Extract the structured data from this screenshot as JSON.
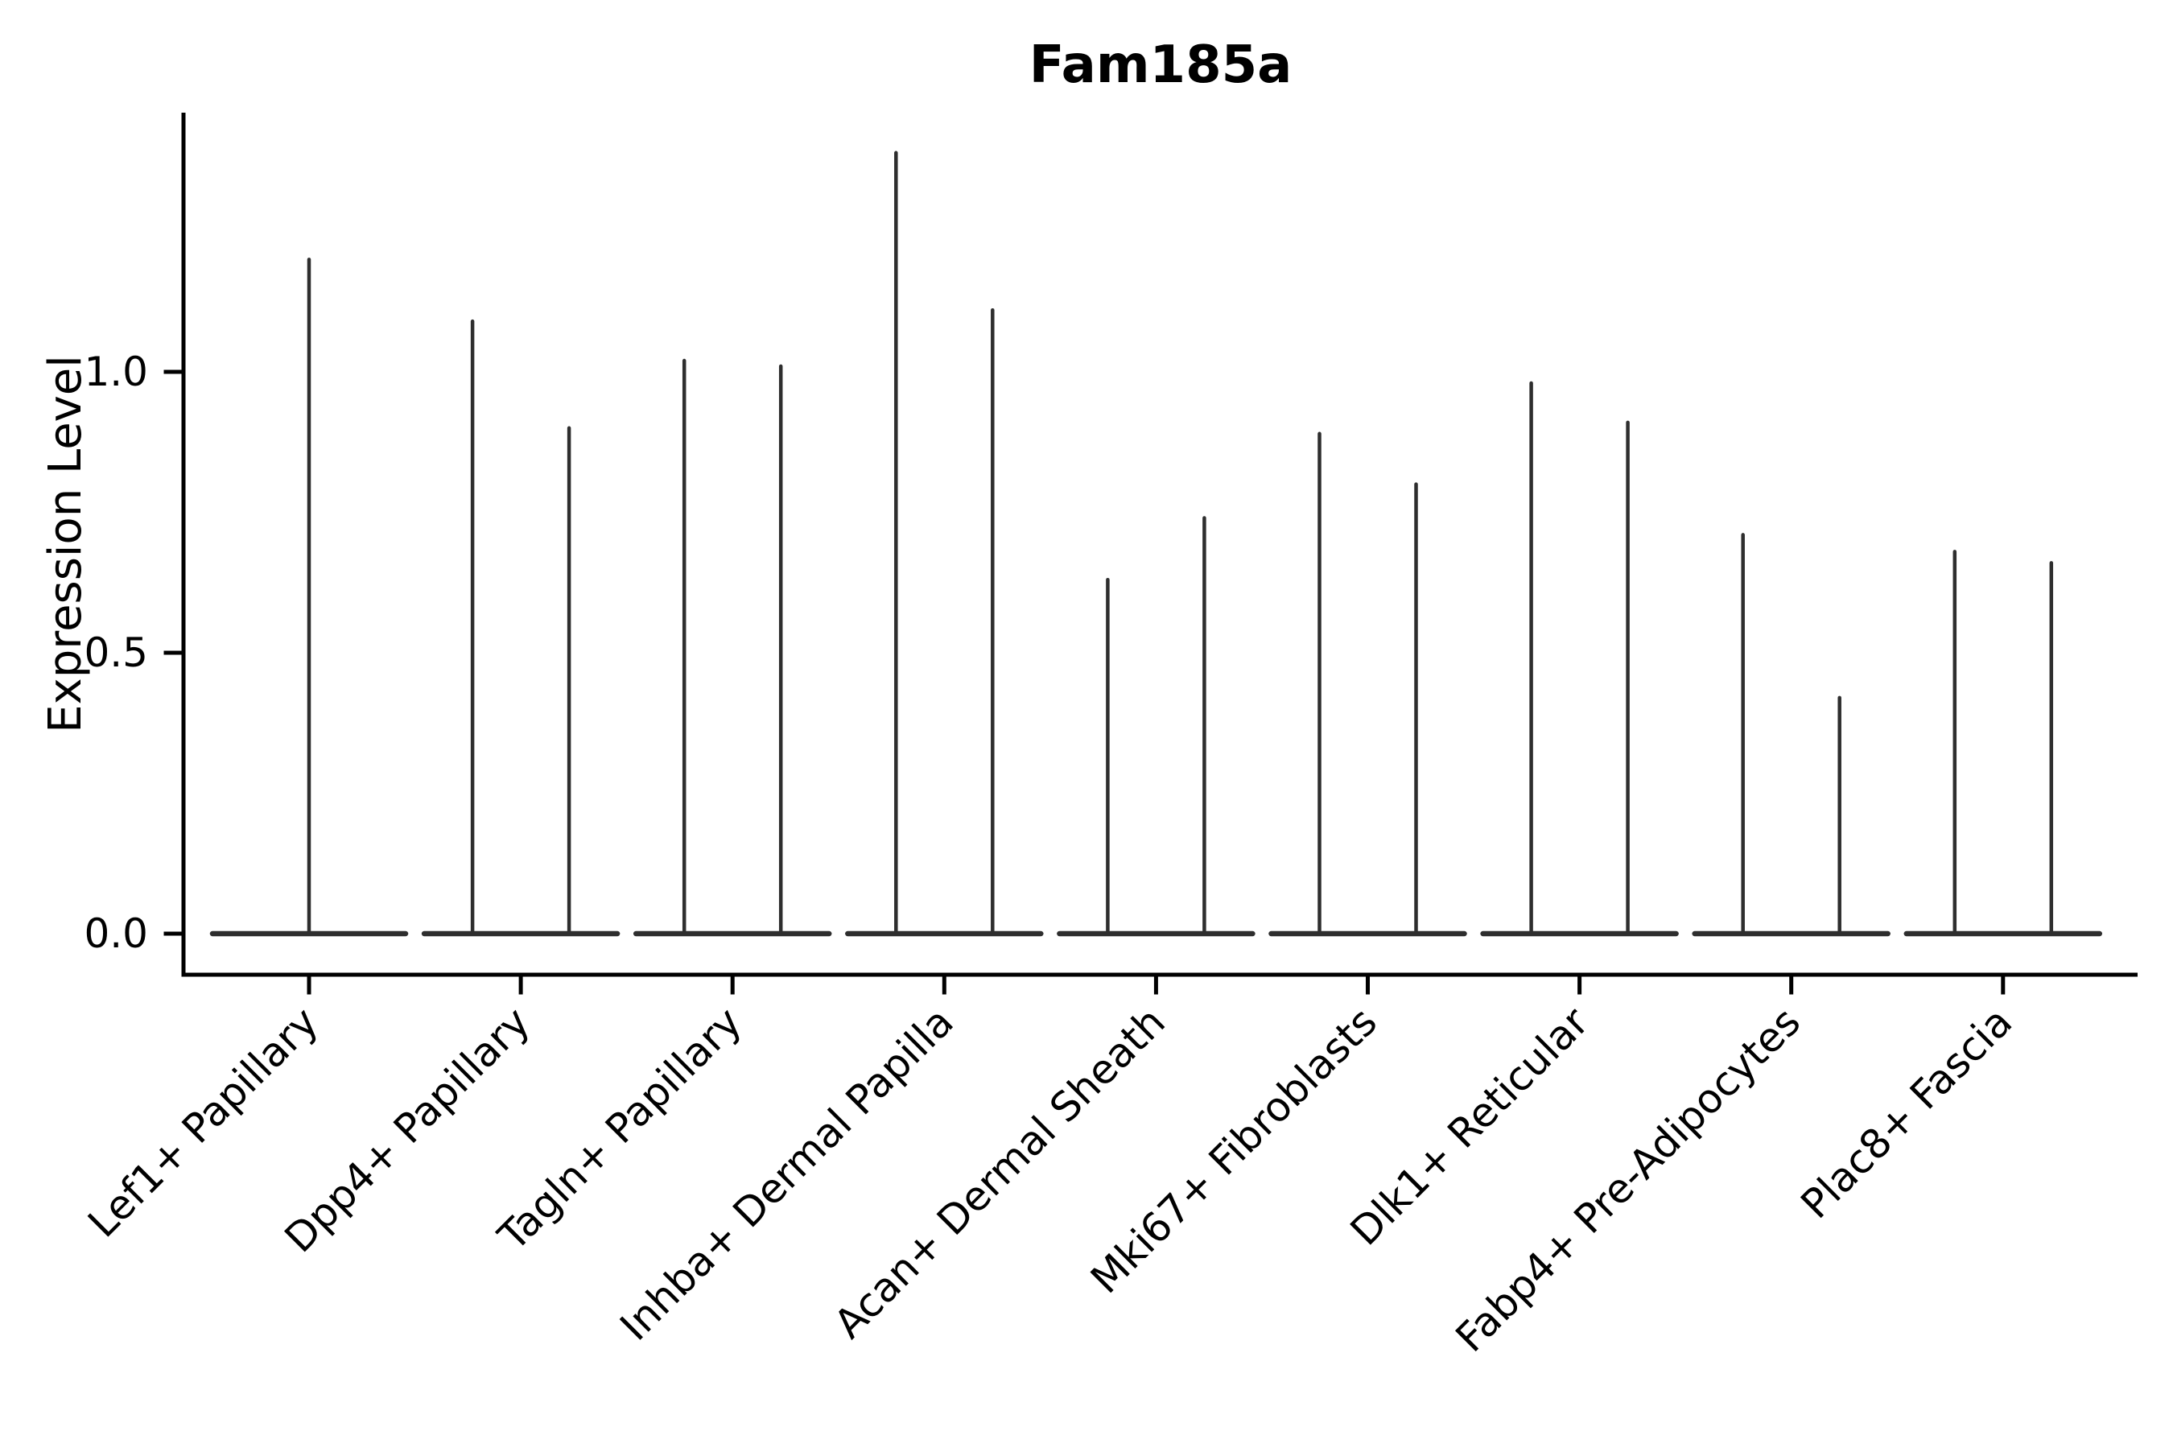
{
  "title": "Fam185a",
  "axes": {
    "y_label": "Expression Level",
    "y_tick_labels": [
      "0.0",
      "0.5",
      "1.0"
    ],
    "y_tick_values": [
      0.0,
      0.5,
      1.0
    ]
  },
  "chart_data": {
    "type": "violin",
    "title": "Fam185a",
    "xlabel": "",
    "ylabel": "Expression Level",
    "ylim": [
      -0.07,
      1.46
    ],
    "yticks": [
      0.0,
      0.5,
      1.0
    ],
    "grid": false,
    "legend": "none",
    "categories": [
      "Lef1+ Papillary",
      "Dpp4+ Papillary",
      "Tagln+ Papillary",
      "Inhba+ Dermal Papilla",
      "Acan+ Dermal Sheath",
      "Mki67+ Fibroblasts",
      "Dlk1+ Reticular",
      "Fabp4+ Pre-Adipocytes",
      "Plac8+ Fascia"
    ],
    "groups": [
      {
        "category": "Lef1+ Papillary",
        "violin_max_values": [
          1.2
        ]
      },
      {
        "category": "Dpp4+ Papillary",
        "violin_max_values": [
          1.09,
          0.9
        ]
      },
      {
        "category": "Tagln+ Papillary",
        "violin_max_values": [
          1.02,
          1.01
        ]
      },
      {
        "category": "Inhba+ Dermal Papilla",
        "violin_max_values": [
          1.39,
          1.11
        ]
      },
      {
        "category": "Acan+ Dermal Sheath",
        "violin_max_values": [
          0.63,
          0.74
        ]
      },
      {
        "category": "Mki67+ Fibroblasts",
        "violin_max_values": [
          0.89,
          0.8
        ]
      },
      {
        "category": "Dlk1+ Reticular",
        "violin_max_values": [
          0.98,
          0.91
        ]
      },
      {
        "category": "Fabp4+ Pre-Adipocytes",
        "violin_max_values": [
          0.71,
          0.42
        ]
      },
      {
        "category": "Plac8+ Fascia",
        "violin_max_values": [
          0.68,
          0.66
        ]
      }
    ],
    "violin_baseline_value": 0.0,
    "colors": {
      "violin": "#2e2e2e",
      "axis": "#000000",
      "background": "#ffffff"
    }
  }
}
